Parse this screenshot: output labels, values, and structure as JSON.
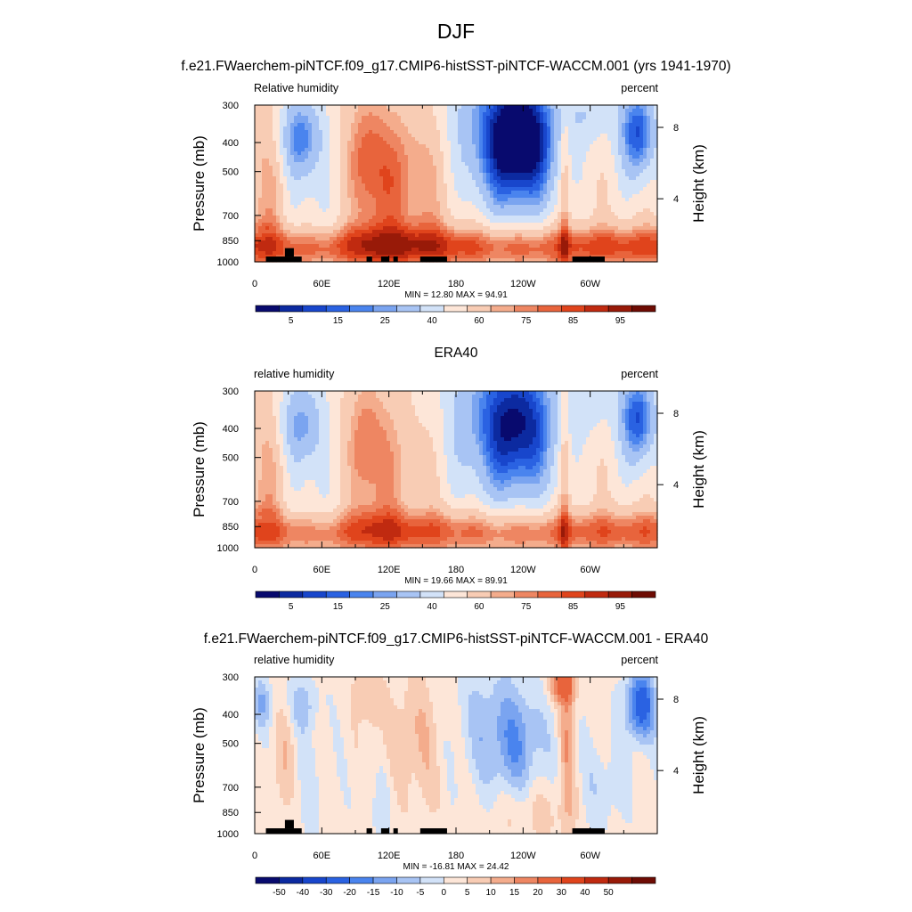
{
  "figure": {
    "season": "DJF",
    "model_title": "f.e21.FWaerchem-piNTCF.f09_g17.CMIP6-histSST-piNTCF-WACCM.001 (yrs 1941-1970)",
    "obs_title": "ERA40",
    "diff_title": "f.e21.FWaerchem-piNTCF.f09_g17.CMIP6-histSST-piNTCF-WACCM.001 - ERA40"
  },
  "chart_data": [
    {
      "type": "heatmap",
      "id": "model",
      "variable_label": "Relative humidity",
      "units_label": "percent",
      "ylabel": "Pressure (mb)",
      "ylabel_right": "Height (km)",
      "x_ticks": [
        "0",
        "60E",
        "120E",
        "180",
        "120W",
        "60W"
      ],
      "x_tick_lon": [
        0,
        60,
        120,
        180,
        240,
        300
      ],
      "xlim": [
        0,
        360
      ],
      "y_ticks": [
        "300",
        "400",
        "500",
        "700",
        "850",
        "1000"
      ],
      "y_tick_p": [
        300,
        400,
        500,
        700,
        850,
        1000
      ],
      "ylim": [
        1000,
        300
      ],
      "y_scale": "log",
      "right_ticks": [
        "8",
        "4"
      ],
      "right_tick_p": [
        356,
        616
      ],
      "stats_text": "MIN =  12.80  MAX =  94.91",
      "min": 12.8,
      "max": 94.91,
      "field_mode": "model",
      "colorbar_labels": [
        "5",
        "15",
        "25",
        "40",
        "60",
        "75",
        "85",
        "95"
      ],
      "colorbar_levels": [
        0,
        5,
        10,
        15,
        20,
        25,
        30,
        40,
        50,
        60,
        70,
        75,
        80,
        85,
        90,
        95,
        100
      ],
      "terrain": true
    },
    {
      "type": "heatmap",
      "id": "obs",
      "variable_label": "relative humidity",
      "units_label": "percent",
      "ylabel": "Pressure (mb)",
      "ylabel_right": "Height (km)",
      "x_ticks": [
        "0",
        "60E",
        "120E",
        "180",
        "120W",
        "60W"
      ],
      "x_tick_lon": [
        0,
        60,
        120,
        180,
        240,
        300
      ],
      "xlim": [
        0,
        360
      ],
      "y_ticks": [
        "300",
        "400",
        "500",
        "700",
        "850",
        "1000"
      ],
      "y_tick_p": [
        300,
        400,
        500,
        700,
        850,
        1000
      ],
      "ylim": [
        1000,
        300
      ],
      "y_scale": "log",
      "right_ticks": [
        "8",
        "4"
      ],
      "right_tick_p": [
        356,
        616
      ],
      "stats_text": "MIN =  19.66  MAX =  89.91",
      "min": 19.66,
      "max": 89.91,
      "field_mode": "obs",
      "colorbar_labels": [
        "5",
        "15",
        "25",
        "40",
        "60",
        "75",
        "85",
        "95"
      ],
      "colorbar_levels": [
        0,
        5,
        10,
        15,
        20,
        25,
        30,
        40,
        50,
        60,
        70,
        75,
        80,
        85,
        90,
        95,
        100
      ],
      "terrain": false
    },
    {
      "type": "heatmap",
      "id": "diff",
      "variable_label": "relative humidity",
      "units_label": "percent",
      "ylabel": "Pressure (mb)",
      "ylabel_right": "Height (km)",
      "x_ticks": [
        "0",
        "60E",
        "120E",
        "180",
        "120W",
        "60W"
      ],
      "x_tick_lon": [
        0,
        60,
        120,
        180,
        240,
        300
      ],
      "xlim": [
        0,
        360
      ],
      "y_ticks": [
        "300",
        "400",
        "500",
        "700",
        "850",
        "1000"
      ],
      "y_tick_p": [
        300,
        400,
        500,
        700,
        850,
        1000
      ],
      "ylim": [
        1000,
        300
      ],
      "y_scale": "log",
      "right_ticks": [
        "8",
        "4"
      ],
      "right_tick_p": [
        356,
        616
      ],
      "stats_text": "MIN = -16.81  MAX =  24.42",
      "min": -16.81,
      "max": 24.42,
      "field_mode": "diff",
      "colorbar_labels": [
        "-50",
        "-40",
        "-30",
        "-20",
        "-15",
        "-10",
        "-5",
        "0",
        "5",
        "10",
        "15",
        "20",
        "30",
        "40",
        "50"
      ],
      "colorbar_levels": [
        -60,
        -50,
        -40,
        -30,
        -20,
        -15,
        -10,
        -5,
        0,
        5,
        10,
        15,
        20,
        30,
        40,
        50,
        60
      ],
      "terrain": true
    }
  ],
  "palette": [
    "#080a6e",
    "#0c2aa0",
    "#1846cc",
    "#2a62e2",
    "#4a84ee",
    "#7aa4f0",
    "#a8c4f4",
    "#d2e2f8",
    "#fde6d8",
    "#f8ccb4",
    "#f4ac8c",
    "#ee8662",
    "#e8643c",
    "#e0441c",
    "#c02a10",
    "#981a08",
    "#6e0c04"
  ],
  "terrain_blocks": [
    {
      "lon": [
        10,
        42
      ],
      "p": [
        960,
        1000
      ]
    },
    {
      "lon": [
        27,
        35
      ],
      "p": [
        900,
        960
      ]
    },
    {
      "lon": [
        100,
        105
      ],
      "p": [
        960,
        1000
      ]
    },
    {
      "lon": [
        113,
        120
      ],
      "p": [
        960,
        1000
      ]
    },
    {
      "lon": [
        124,
        128
      ],
      "p": [
        960,
        1000
      ]
    },
    {
      "lon": [
        148,
        172
      ],
      "p": [
        960,
        1000
      ]
    },
    {
      "lon": [
        284,
        313
      ],
      "p": [
        960,
        1000
      ]
    }
  ]
}
